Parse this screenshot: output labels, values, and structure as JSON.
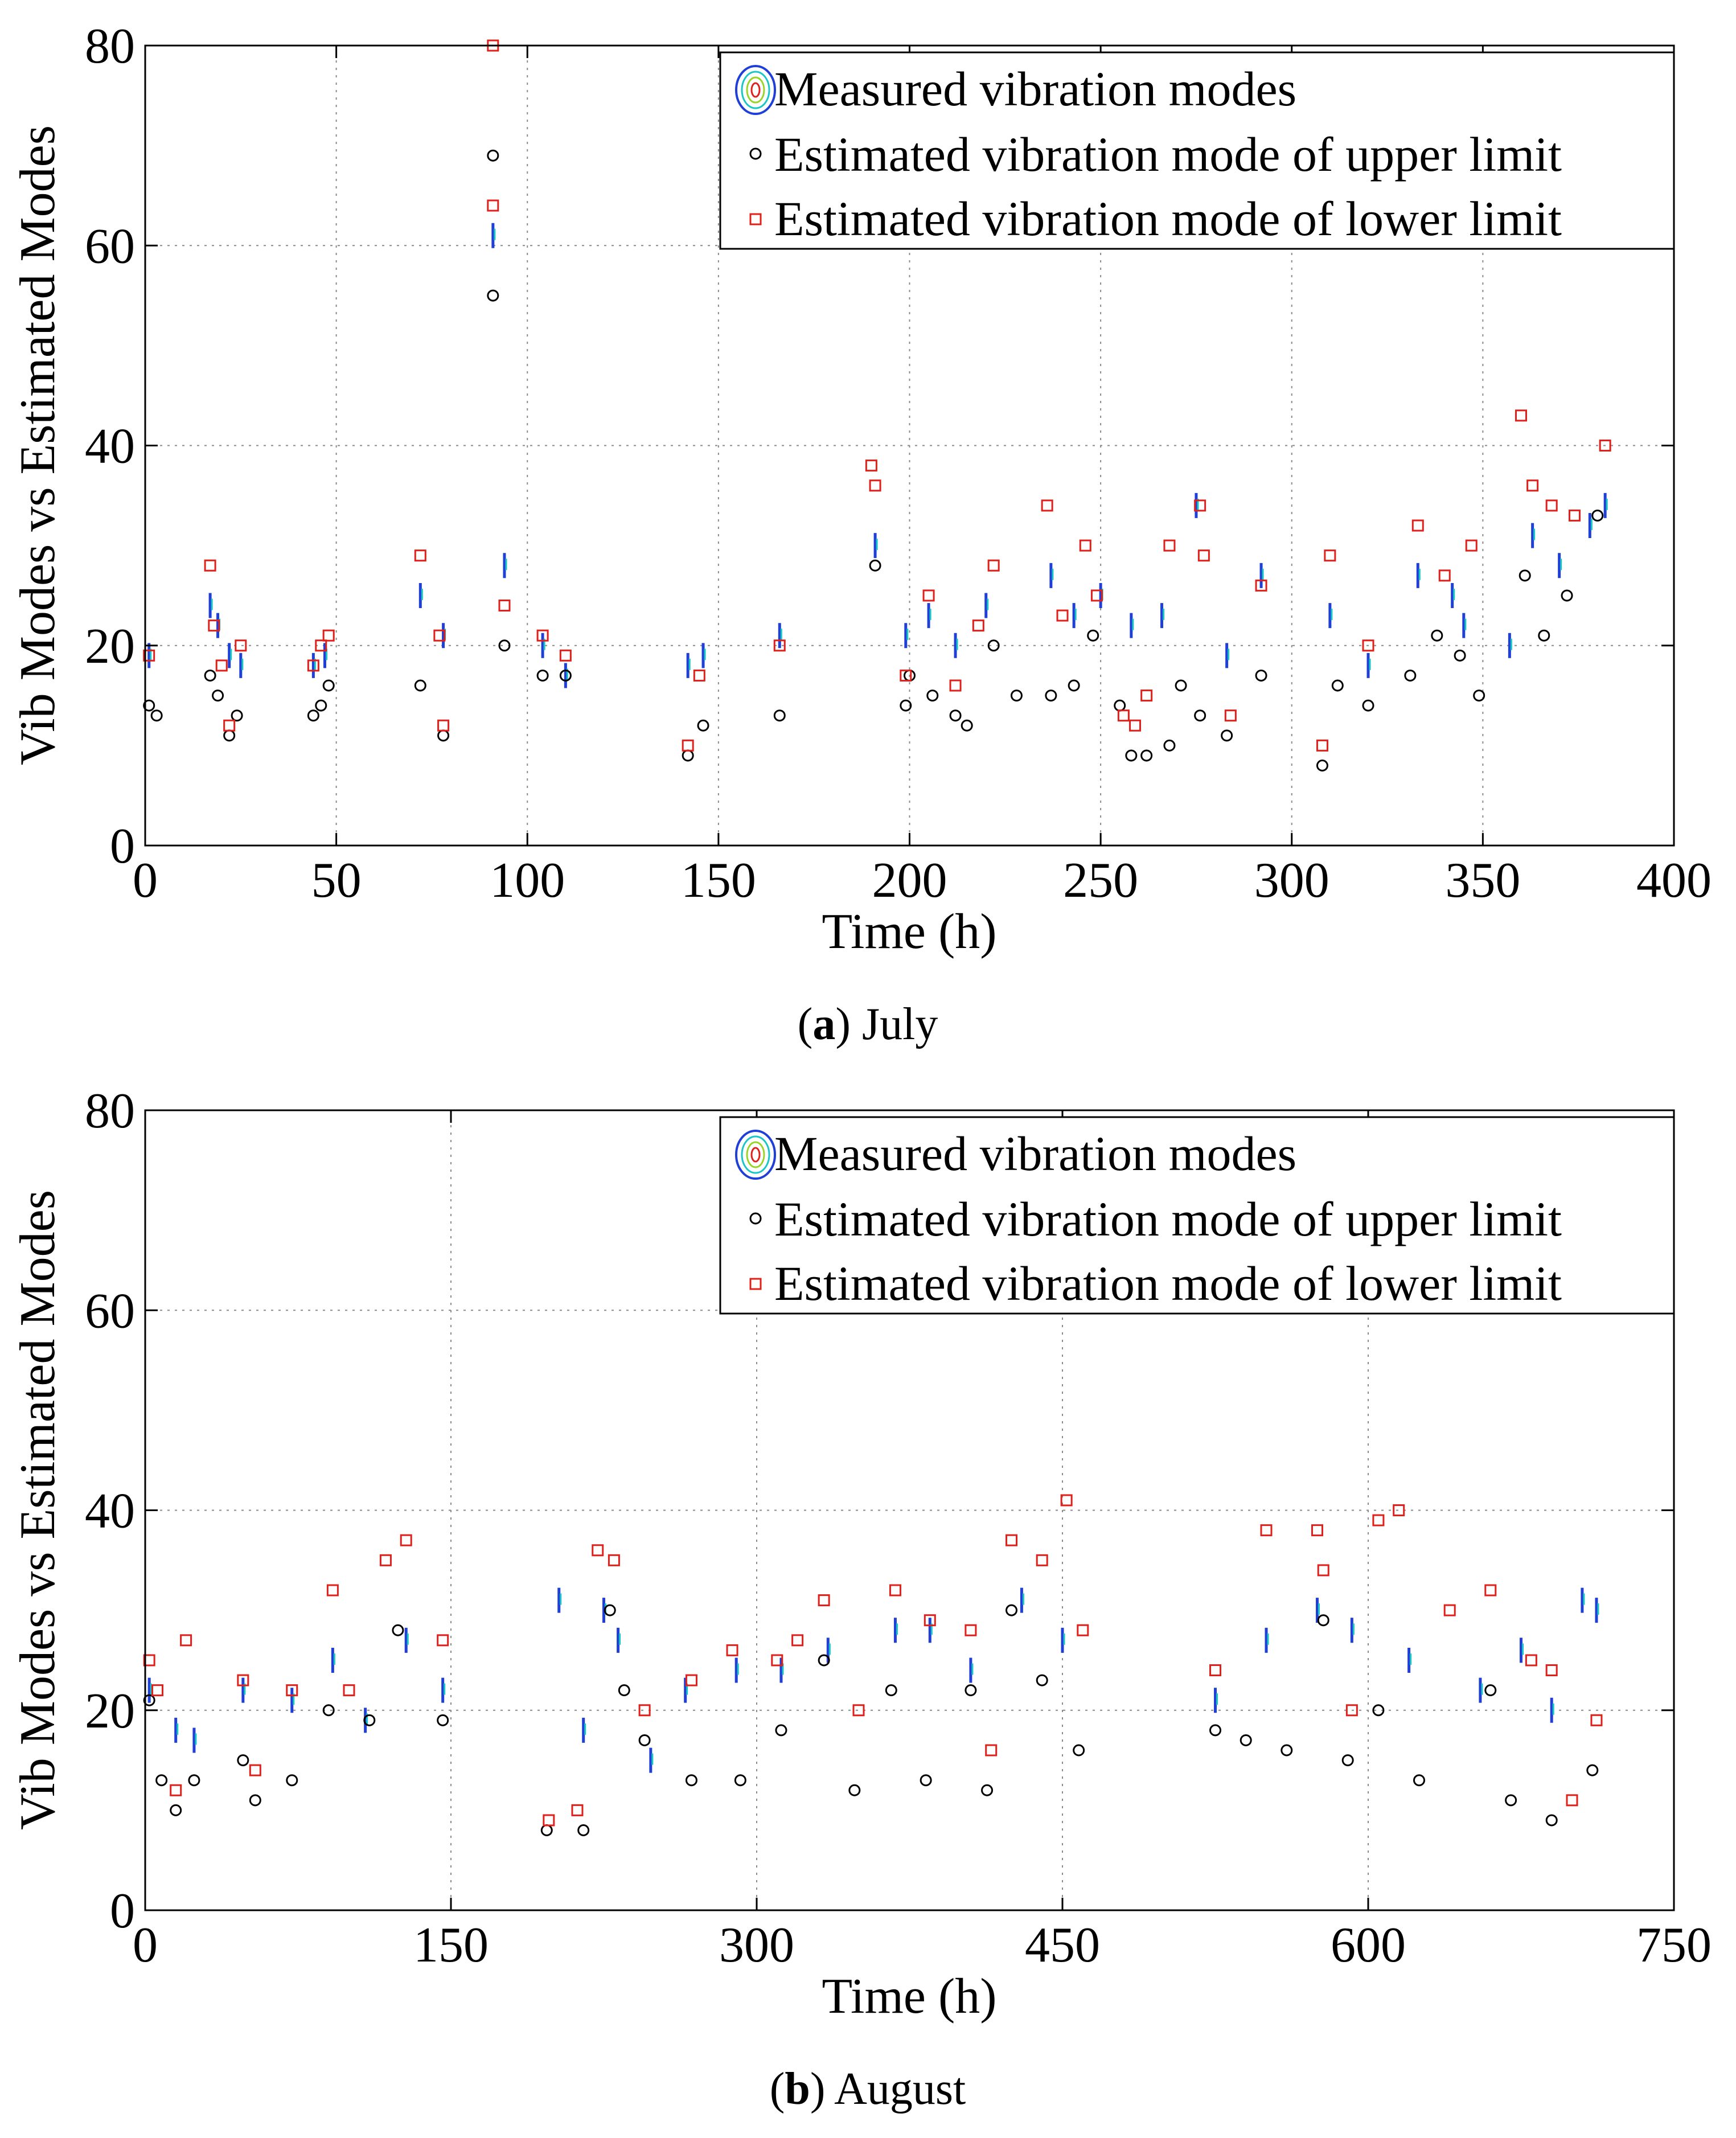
{
  "figure": {
    "panels": [
      {
        "caption_letter": "a",
        "caption_text": " July"
      },
      {
        "caption_letter": "b",
        "caption_text": " August"
      }
    ]
  },
  "colors": {
    "measured": "#1f3fd6",
    "measured_accent": "#19c6c6",
    "upper": "#000000",
    "lower": "#e0201b",
    "grid": "#8a8a8a"
  },
  "chart_data": [
    {
      "type": "scatter",
      "title": "",
      "caption": "(a) July",
      "xlabel": "Time (h)",
      "ylabel": "Vib Modes vs Estimated Modes",
      "xlim": [
        0,
        400
      ],
      "ylim": [
        0,
        80
      ],
      "xticks": [
        "0",
        "50",
        "100",
        "150",
        "200",
        "250",
        "300",
        "350",
        "400"
      ],
      "yticks": [
        "0",
        "20",
        "40",
        "60",
        "80"
      ],
      "grid": true,
      "legend_position": "top-right",
      "legend": [
        "Measured vibration modes",
        "Estimated vibration mode of upper limit",
        "Estimated vibration mode of lower limit"
      ],
      "series": [
        {
          "name": "Measured vibration modes",
          "marker": "line",
          "x": [
            1,
            17,
            19,
            22,
            25,
            44,
            47,
            72,
            78,
            91,
            94,
            104,
            110,
            142,
            146,
            166,
            191,
            199,
            205,
            212,
            220,
            237,
            243,
            250,
            258,
            266,
            275,
            283,
            292,
            310,
            320,
            333,
            342,
            345,
            357,
            363,
            370,
            378,
            382
          ],
          "y": [
            19,
            24,
            22,
            19,
            18,
            18,
            19,
            25,
            21,
            61,
            28,
            20,
            17,
            18,
            19,
            21,
            30,
            21,
            23,
            20,
            24,
            27,
            23,
            25,
            22,
            23,
            34,
            19,
            27,
            23,
            18,
            27,
            25,
            22,
            20,
            31,
            28,
            32,
            34
          ]
        },
        {
          "name": "Estimated vibration mode of upper limit",
          "marker": "circle",
          "x": [
            1,
            3,
            17,
            19,
            22,
            24,
            44,
            46,
            48,
            72,
            78,
            91,
            91,
            94,
            104,
            110,
            142,
            146,
            166,
            191,
            199,
            200,
            206,
            212,
            215,
            222,
            228,
            237,
            243,
            248,
            255,
            258,
            262,
            268,
            271,
            276,
            283,
            292,
            308,
            312,
            320,
            331,
            338,
            344,
            349,
            361,
            366,
            372,
            380
          ],
          "y": [
            14,
            13,
            17,
            15,
            11,
            13,
            13,
            14,
            16,
            16,
            11,
            69,
            55,
            20,
            17,
            17,
            9,
            12,
            13,
            28,
            14,
            17,
            15,
            13,
            12,
            20,
            15,
            15,
            16,
            21,
            14,
            9,
            9,
            10,
            16,
            13,
            11,
            17,
            8,
            16,
            14,
            17,
            21,
            19,
            15,
            27,
            21,
            25,
            33
          ]
        },
        {
          "name": "Estimated vibration mode of lower limit",
          "marker": "square",
          "x": [
            1,
            17,
            18,
            20,
            22,
            25,
            44,
            46,
            48,
            72,
            77,
            78,
            91,
            91,
            94,
            104,
            110,
            142,
            145,
            166,
            190,
            191,
            199,
            205,
            212,
            218,
            222,
            236,
            240,
            246,
            249,
            256,
            259,
            262,
            268,
            276,
            277,
            284,
            292,
            308,
            310,
            320,
            333,
            340,
            347,
            360,
            363,
            368,
            374,
            382
          ],
          "y": [
            19,
            28,
            22,
            18,
            12,
            20,
            18,
            20,
            21,
            29,
            21,
            12,
            80,
            64,
            24,
            21,
            19,
            10,
            17,
            20,
            38,
            36,
            17,
            25,
            16,
            22,
            28,
            34,
            23,
            30,
            25,
            13,
            12,
            15,
            30,
            34,
            29,
            13,
            26,
            10,
            29,
            20,
            32,
            27,
            30,
            43,
            36,
            34,
            33,
            40
          ]
        }
      ]
    },
    {
      "type": "scatter",
      "title": "",
      "caption": "(b) August",
      "xlabel": "Time (h)",
      "ylabel": "Vib Modes vs Estimated Modes",
      "xlim": [
        0,
        750
      ],
      "ylim": [
        0,
        80
      ],
      "xticks": [
        "0",
        "150",
        "300",
        "450",
        "600",
        "750"
      ],
      "yticks": [
        "0",
        "20",
        "40",
        "60",
        "80"
      ],
      "grid": true,
      "legend_position": "top-right",
      "legend": [
        "Measured vibration modes",
        "Estimated vibration mode of upper limit",
        "Estimated vibration mode of lower limit"
      ],
      "series": [
        {
          "name": "Measured vibration modes",
          "marker": "line",
          "x": [
            2,
            15,
            24,
            48,
            72,
            92,
            108,
            128,
            146,
            203,
            215,
            225,
            232,
            248,
            265,
            290,
            312,
            335,
            368,
            385,
            405,
            430,
            450,
            525,
            550,
            575,
            592,
            620,
            655,
            675,
            690,
            705,
            712
          ],
          "y": [
            22,
            18,
            17,
            22,
            21,
            25,
            19,
            27,
            22,
            31,
            18,
            30,
            27,
            15,
            22,
            24,
            24,
            26,
            28,
            28,
            24,
            31,
            27,
            21,
            27,
            30,
            28,
            25,
            22,
            26,
            20,
            31,
            30
          ]
        },
        {
          "name": "Estimated vibration mode of upper limit",
          "marker": "circle",
          "x": [
            2,
            8,
            15,
            24,
            48,
            54,
            72,
            90,
            110,
            124,
            146,
            197,
            215,
            228,
            235,
            245,
            268,
            292,
            312,
            333,
            348,
            366,
            383,
            405,
            413,
            425,
            440,
            458,
            525,
            540,
            560,
            578,
            590,
            605,
            625,
            660,
            670,
            690,
            710
          ],
          "y": [
            21,
            13,
            10,
            13,
            15,
            11,
            13,
            20,
            19,
            28,
            19,
            8,
            8,
            30,
            22,
            17,
            13,
            13,
            18,
            25,
            12,
            22,
            13,
            22,
            12,
            30,
            23,
            16,
            18,
            17,
            16,
            29,
            15,
            20,
            13,
            22,
            11,
            9,
            14
          ]
        },
        {
          "name": "Estimated vibration mode of lower limit",
          "marker": "square",
          "x": [
            2,
            6,
            15,
            20,
            48,
            54,
            72,
            92,
            100,
            118,
            128,
            146,
            198,
            212,
            222,
            230,
            245,
            268,
            288,
            310,
            320,
            333,
            350,
            368,
            385,
            405,
            415,
            425,
            440,
            452,
            460,
            525,
            550,
            575,
            578,
            592,
            605,
            615,
            640,
            660,
            680,
            690,
            700,
            712
          ],
          "y": [
            25,
            22,
            12,
            27,
            23,
            14,
            22,
            32,
            22,
            35,
            37,
            27,
            9,
            10,
            36,
            35,
            20,
            23,
            26,
            25,
            27,
            31,
            20,
            32,
            29,
            28,
            16,
            37,
            35,
            41,
            28,
            24,
            38,
            38,
            34,
            20,
            39,
            40,
            30,
            32,
            25,
            24,
            11,
            19
          ]
        }
      ]
    }
  ]
}
